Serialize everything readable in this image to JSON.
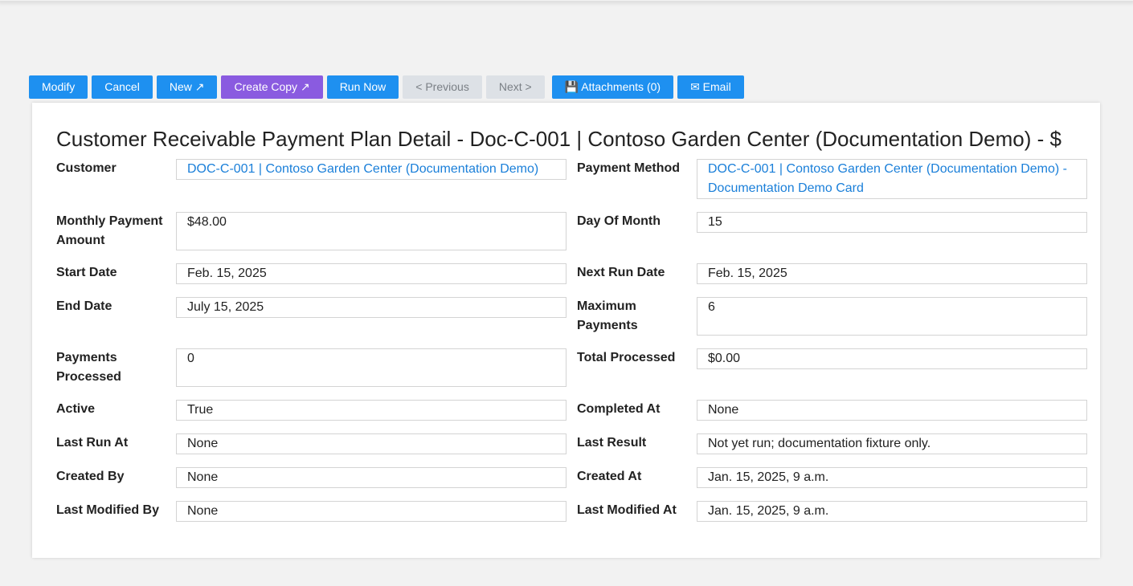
{
  "toolbar": {
    "modify": "Modify",
    "cancel": "Cancel",
    "new": "New ↗",
    "create_copy": "Create Copy ↗",
    "run_now": "Run Now",
    "previous": "< Previous",
    "next": "Next >",
    "attachments": "💾 Attachments (0)",
    "email": "✉ Email"
  },
  "title": "Customer Receivable Payment Plan Detail - Doc-C-001 | Contoso Garden Center (Documentation Demo) - $",
  "fields": {
    "customer": {
      "label": "Customer",
      "value": "DOC-C-001 | Contoso Garden Center (Documentation Demo)"
    },
    "payment_method": {
      "label": "Payment Method",
      "value": "DOC-C-001 | Contoso Garden Center (Documentation Demo) - Documentation Demo Card"
    },
    "monthly_payment_amount": {
      "label": "Monthly Payment Amount",
      "value": "$48.00"
    },
    "day_of_month": {
      "label": "Day Of Month",
      "value": "15"
    },
    "start_date": {
      "label": "Start Date",
      "value": "Feb. 15, 2025"
    },
    "next_run_date": {
      "label": "Next Run Date",
      "value": "Feb. 15, 2025"
    },
    "end_date": {
      "label": "End Date",
      "value": "July 15, 2025"
    },
    "maximum_payments": {
      "label": "Maximum Payments",
      "value": "6"
    },
    "payments_processed": {
      "label": "Payments Processed",
      "value": "0"
    },
    "total_processed": {
      "label": "Total Processed",
      "value": "$0.00"
    },
    "active": {
      "label": "Active",
      "value": "True"
    },
    "completed_at": {
      "label": "Completed At",
      "value": "None"
    },
    "last_run_at": {
      "label": "Last Run At",
      "value": "None"
    },
    "last_result": {
      "label": "Last Result",
      "value": "Not yet run; documentation fixture only."
    },
    "created_by": {
      "label": "Created By",
      "value": "None"
    },
    "created_at": {
      "label": "Created At",
      "value": "Jan. 15, 2025, 9 a.m."
    },
    "last_modified_by": {
      "label": "Last Modified By",
      "value": "None"
    },
    "last_modified_at": {
      "label": "Last Modified At",
      "value": "Jan. 15, 2025, 9 a.m."
    }
  }
}
